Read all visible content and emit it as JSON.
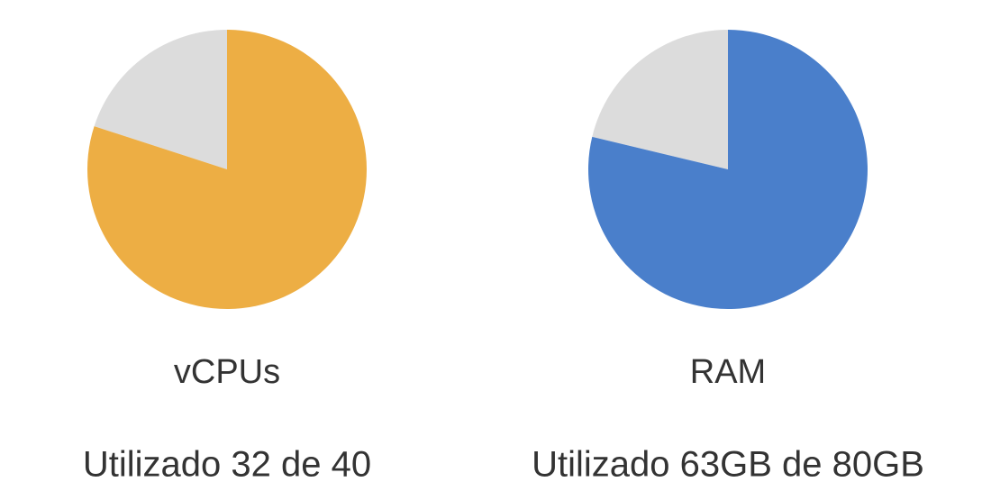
{
  "chart_data": [
    {
      "type": "pie",
      "title": "vCPUs",
      "caption": "Utilizado 32 de 40",
      "used": 32,
      "total": 40,
      "color": "#edae44",
      "rest_color": "#dcdcdc"
    },
    {
      "type": "pie",
      "title": "RAM",
      "caption": "Utilizado 63GB de 80GB",
      "used": 63,
      "total": 80,
      "color": "#4a7fcb",
      "rest_color": "#dcdcdc"
    }
  ]
}
